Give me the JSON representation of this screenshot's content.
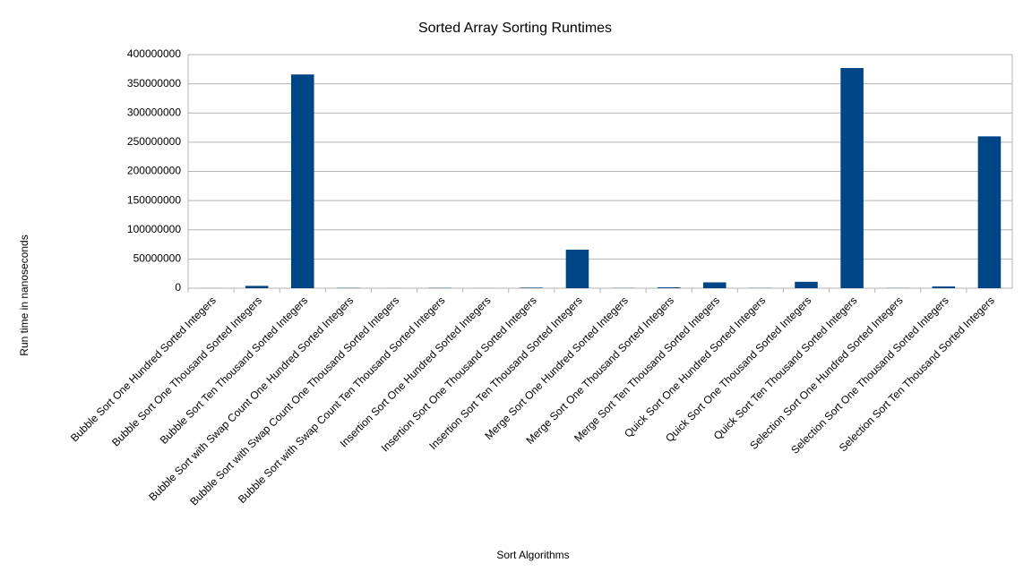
{
  "chart_data": {
    "type": "bar",
    "title": "Sorted Array Sorting Runtimes",
    "x_label": "Sort Algorithms",
    "y_label": "Run time in nanoseconds",
    "categories": [
      "Bubble Sort One Hundred Sorted Integers",
      "Bubble Sort One Thousand Sorted Integers",
      "Bubble Sort Ten Thousand Sorted Integers",
      "Bubble Sort with Swap Count One Hundred Sorted Integers",
      "Bubble Sort with Swap Count One Thousand Sorted Integers",
      "Bubble Sort with Swap Count Ten Thousand Sorted Integers",
      "Insertion Sort One Hundred Sorted Integers",
      "Insertion Sort One Thousand Sorted Integers",
      "Insertion Sort Ten Thousand Sorted Integers",
      "Merge Sort One Hundred Sorted Integers",
      "Merge Sort One Thousand Sorted Integers",
      "Merge Sort Ten Thousand Sorted Integers",
      "Quick Sort One Hundred Sorted Integers",
      "Quick Sort One Thousand Sorted Integers",
      "Quick Sort Ten Thousand Sorted Integers",
      "Selection Sort One Hundred Sorted Integers",
      "Selection Sort One Thousand Sorted Integers",
      "Selection Sort Ten Thousand Sorted Integers"
    ],
    "values": [
      100000,
      4000000,
      366000000,
      500000,
      100000,
      500000,
      100000,
      1000000,
      66000000,
      300000,
      1500000,
      10000000,
      300000,
      11000000,
      377000000,
      300000,
      3000000,
      260000000
    ],
    "color": "#004586",
    "ylim": [
      0,
      400000000
    ],
    "yticks": [
      0,
      50000000,
      100000000,
      150000000,
      200000000,
      250000000,
      300000000,
      350000000,
      400000000
    ],
    "grid": true
  }
}
